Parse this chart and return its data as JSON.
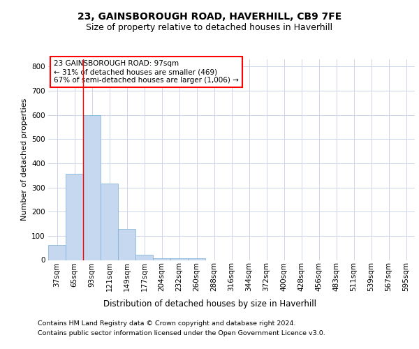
{
  "title1": "23, GAINSBOROUGH ROAD, HAVERHILL, CB9 7FE",
  "title2": "Size of property relative to detached houses in Haverhill",
  "xlabel": "Distribution of detached houses by size in Haverhill",
  "ylabel": "Number of detached properties",
  "categories": [
    "37sqm",
    "65sqm",
    "93sqm",
    "121sqm",
    "149sqm",
    "177sqm",
    "204sqm",
    "232sqm",
    "260sqm",
    "288sqm",
    "316sqm",
    "344sqm",
    "372sqm",
    "400sqm",
    "428sqm",
    "456sqm",
    "483sqm",
    "511sqm",
    "539sqm",
    "567sqm",
    "595sqm"
  ],
  "values": [
    62,
    356,
    598,
    315,
    128,
    22,
    8,
    6,
    8,
    0,
    0,
    0,
    0,
    0,
    0,
    0,
    0,
    0,
    0,
    0,
    0
  ],
  "bar_color": "#c5d8f0",
  "bar_edge_color": "#7baed4",
  "red_line_index": 2,
  "property_size": 97,
  "pct_smaller": 31,
  "n_smaller": 469,
  "pct_semi_larger": 67,
  "n_semi_larger": 1006,
  "ylim": [
    0,
    830
  ],
  "yticks": [
    0,
    100,
    200,
    300,
    400,
    500,
    600,
    700,
    800
  ],
  "footnote1": "Contains HM Land Registry data © Crown copyright and database right 2024.",
  "footnote2": "Contains public sector information licensed under the Open Government Licence v3.0.",
  "background_color": "#ffffff",
  "grid_color": "#ccd6e8",
  "title1_fontsize": 10,
  "title2_fontsize": 9,
  "ylabel_fontsize": 8,
  "xlabel_fontsize": 8.5,
  "tick_fontsize": 7.5,
  "ann_fontsize": 7.5,
  "footnote_fontsize": 6.8
}
